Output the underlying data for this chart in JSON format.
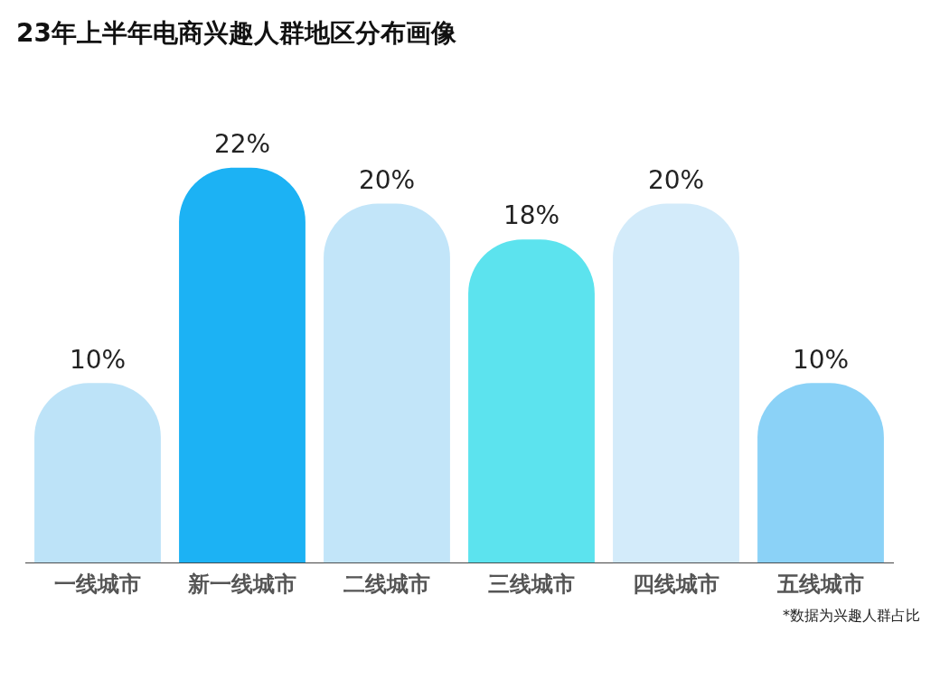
{
  "chart_data": {
    "type": "bar",
    "title": "23年上半年电商兴趣人群地区分布画像",
    "categories": [
      "一线城市",
      "新一线城市",
      "二线城市",
      "三线城市",
      "四线城市",
      "五线城市"
    ],
    "values": [
      10,
      22,
      20,
      18,
      20,
      10
    ],
    "colors": [
      "#bde3f8",
      "#1cb2f4",
      "#c2e5f9",
      "#5ce3ee",
      "#d3ebfa",
      "#8bd2f7"
    ],
    "value_labels": [
      "10%",
      "22%",
      "20%",
      "18%",
      "20%",
      "10%"
    ],
    "grid": false,
    "legend": false,
    "annotations": [
      "*数据为兴趣人群占比"
    ]
  }
}
